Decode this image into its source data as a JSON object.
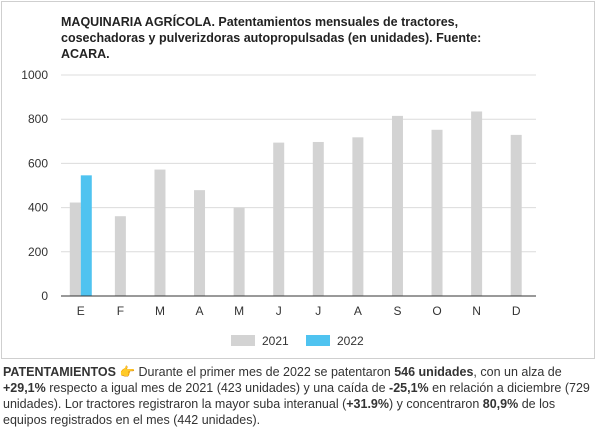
{
  "chart_data": {
    "type": "bar",
    "title": "MAQUINARIA AGRÍCOLA. Patentamientos mensuales de tractores, cosechadoras y pulverizdoras autopropulsadas (en unidades). Fuente: ACARA.",
    "categories": [
      "E",
      "F",
      "M",
      "A",
      "M",
      "J",
      "J",
      "A",
      "S",
      "O",
      "N",
      "D"
    ],
    "series": [
      {
        "name": "2021",
        "color": "#d3d3d3",
        "values": [
          423,
          361,
          572,
          479,
          400,
          694,
          697,
          718,
          815,
          752,
          835,
          729
        ]
      },
      {
        "name": "2022",
        "color": "#4fc3f0",
        "values": [
          546,
          null,
          null,
          null,
          null,
          null,
          null,
          null,
          null,
          null,
          null,
          null
        ]
      }
    ],
    "y_ticks": [
      "0",
      "200",
      "400",
      "600",
      "800",
      "1000"
    ],
    "ylim": [
      0,
      1000
    ],
    "grid": true,
    "legend_position": "bottom-center"
  },
  "caption": {
    "lead": "PATENTAMIENTOS",
    "icon": "pointing-hand-icon",
    "parts": [
      {
        "text": " Durante el primer mes de 2022 se patentaron ",
        "bold": false
      },
      {
        "text": "546 unidades",
        "bold": true
      },
      {
        "text": ", con un alza de ",
        "bold": false
      },
      {
        "text": "+29,1%",
        "bold": true
      },
      {
        "text": " respecto a igual mes de 2021 (423 unidades) y una caída de ",
        "bold": false
      },
      {
        "text": "-25,1%",
        "bold": true
      },
      {
        "text": " en relación a diciembre (729 unidades). Lor tractores registraron la mayor suba interanual (",
        "bold": false
      },
      {
        "text": "+31.9%",
        "bold": true
      },
      {
        "text": ") y concentraron ",
        "bold": false
      },
      {
        "text": "80,9%",
        "bold": true
      },
      {
        "text": " de los equipos registrados en el mes (442 unidades).",
        "bold": false
      }
    ]
  }
}
